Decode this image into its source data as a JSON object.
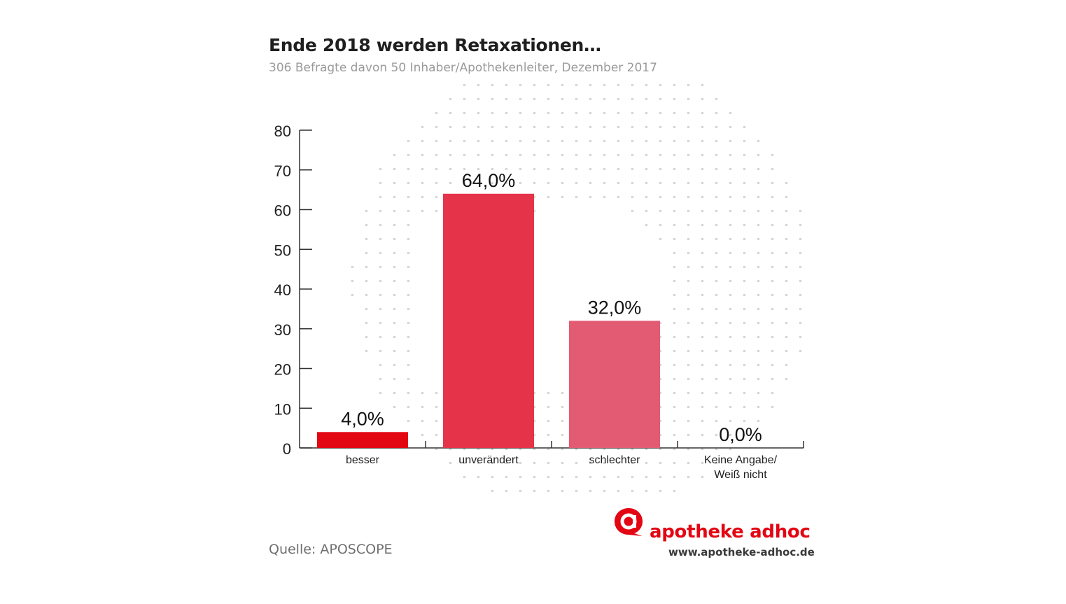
{
  "header": {
    "title": "Ende 2018 werden Retaxationen…",
    "subtitle": "306 Befragte davon 50 Inhaber/Apothekenleiter, Dezember 2017"
  },
  "footer": {
    "source": "Quelle: APOSCOPE",
    "brand_name": "apotheke adhoc",
    "brand_url": "www.apotheke-adhoc.de"
  },
  "chart_data": {
    "type": "bar",
    "title": "Ende 2018 werden Retaxationen…",
    "subtitle": "306 Befragte davon 50 Inhaber/Apothekenleiter, Dezember 2017",
    "categories": [
      "besser",
      "unverändert",
      "schlechter",
      "Keine Angabe/\nWeiß nicht"
    ],
    "values": [
      4.0,
      64.0,
      32.0,
      0.0
    ],
    "data_labels": [
      "4,0%",
      "64,0%",
      "32,0%",
      "0,0%"
    ],
    "bar_colors": [
      "#e30613",
      "#e5344a",
      "#e25b73",
      "#e25b73"
    ],
    "ylim": [
      0,
      80
    ],
    "yticks": [
      0,
      10,
      20,
      30,
      40,
      50,
      60,
      70,
      80
    ],
    "xlabel": "",
    "ylabel": "",
    "grid": false,
    "legend": "none"
  }
}
